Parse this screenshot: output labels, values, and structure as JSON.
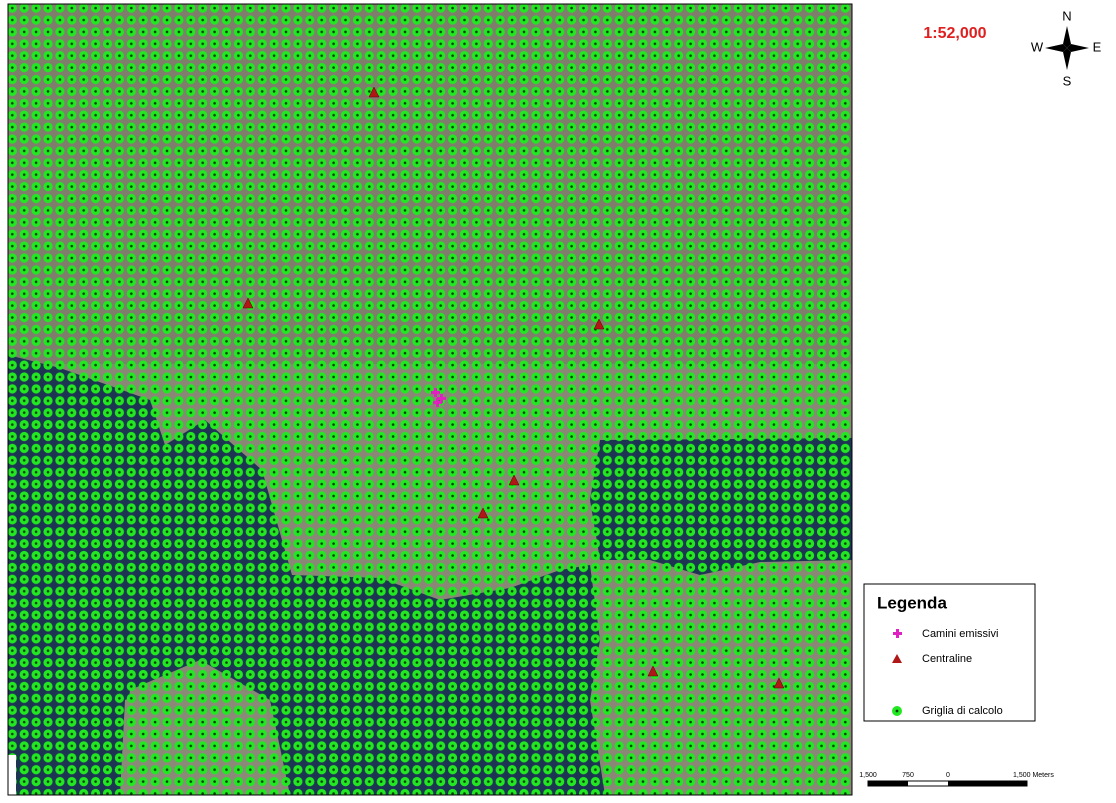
{
  "map": {
    "scale": "1:52,000",
    "compass": {
      "north": "N",
      "south": "S",
      "east": "E",
      "west": "W"
    },
    "legend": {
      "title": "Legenda",
      "items": [
        {
          "label": "Camini emissivi"
        },
        {
          "label": "Centraline"
        },
        {
          "label": "Griglia di calcolo"
        }
      ]
    },
    "scale_bar": {
      "labels": [
        "1,500",
        "750",
        "0",
        "1,500 Meters"
      ]
    }
  }
}
